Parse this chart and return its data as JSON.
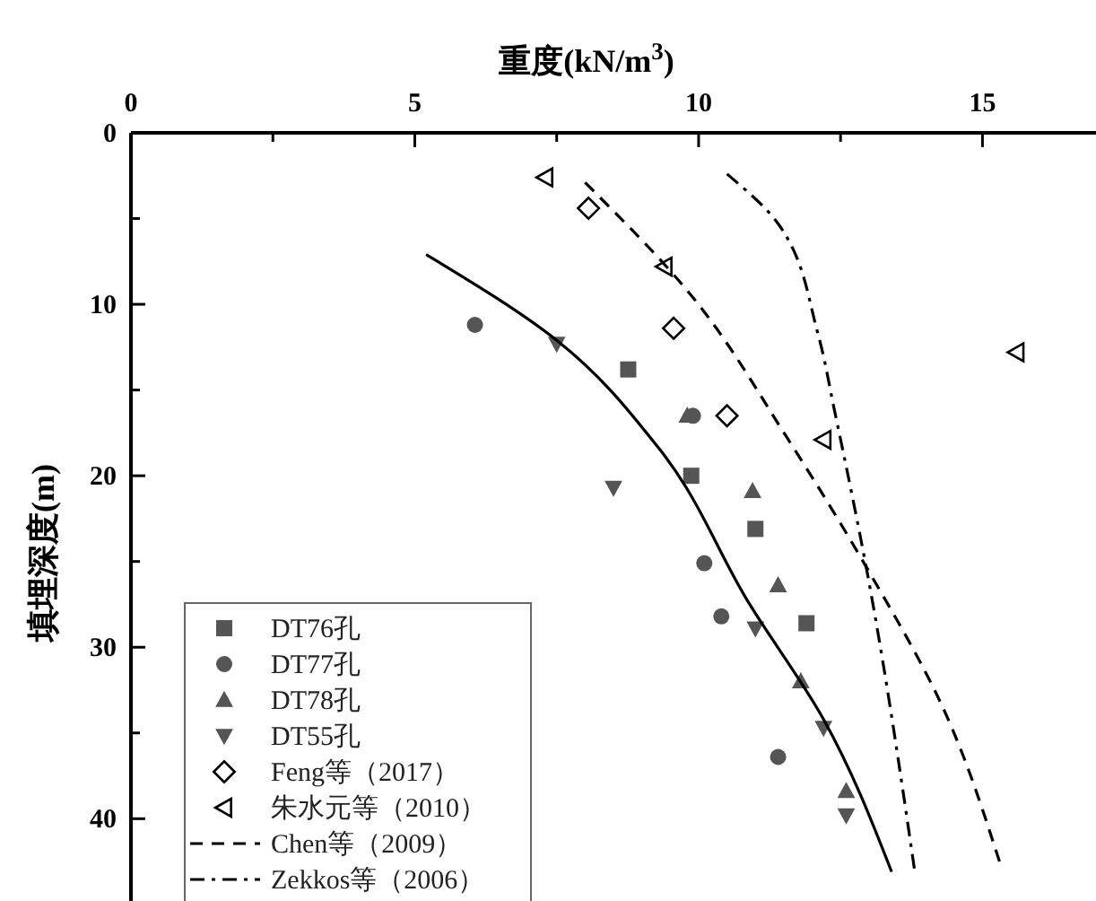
{
  "chart_data": {
    "type": "scatter",
    "xlabel": "重度(kN/m$^{3}$)",
    "ylabel": "填埋深度(m)",
    "xlim": [
      0,
      17
    ],
    "xticks": [
      0,
      {
        "value": 2.5,
        "label": null
      },
      5,
      {
        "value": 7.5,
        "label": null
      },
      10,
      {
        "value": 12.5,
        "label": null
      },
      15
    ],
    "ylim": [
      44.8,
      0
    ],
    "yticks": [
      0,
      {
        "value": 5,
        "label": null
      },
      10,
      {
        "value": 15,
        "label": null
      },
      20,
      {
        "value": 25,
        "label": null
      },
      30,
      {
        "value": 35,
        "label": null
      },
      40
    ],
    "grid": false,
    "legend": "bottom left",
    "series": [
      {
        "name": "DT76孔",
        "marker": "square",
        "color": "#555555",
        "x": [
          8.76,
          9.87,
          11.0,
          11.9
        ],
        "values": [
          13.8,
          20.0,
          23.1,
          28.6
        ]
      },
      {
        "name": "DT77孔",
        "marker": "circle",
        "color": "#555555",
        "x": [
          6.06,
          9.9,
          10.1,
          10.4,
          11.4
        ],
        "values": [
          11.2,
          16.5,
          25.1,
          28.2,
          36.4
        ]
      },
      {
        "name": "DT78孔",
        "marker": "triangle",
        "color": "#555555",
        "x": [
          9.8,
          10.95,
          11.4,
          11.8,
          12.6
        ],
        "values": [
          16.5,
          20.9,
          26.4,
          32.0,
          38.4
        ]
      },
      {
        "name": "DT55孔",
        "marker": "triangle-down",
        "color": "#555555",
        "x": [
          7.5,
          8.5,
          11.0,
          12.2,
          12.6
        ],
        "values": [
          12.3,
          20.7,
          28.9,
          34.7,
          39.8
        ]
      },
      {
        "name": "Feng等（2017）",
        "marker": "diamond",
        "color": "#000000",
        "x": [
          8.06,
          9.56,
          10.5
        ],
        "values": [
          4.4,
          11.4,
          16.5
        ]
      },
      {
        "name": "朱水元等（2010）",
        "marker": "triangle-left",
        "color": "#000000",
        "x": [
          7.3,
          9.4,
          15.6,
          12.2
        ],
        "values": [
          2.6,
          7.8,
          12.8,
          17.9
        ]
      },
      {
        "name": "Chen等（2009）",
        "type": "line",
        "line_style": "dashed",
        "color": "#000000",
        "x": [
          8.0,
          9.8,
          11.6,
          12.95,
          14.3,
          15.3
        ],
        "values": [
          2.9,
          9.2,
          18.0,
          25.3,
          33.5,
          42.5
        ]
      },
      {
        "name": "Zekkos等（2006）",
        "type": "line",
        "line_style": "dashdot",
        "color": "#000000",
        "x": [
          10.5,
          11.4,
          12.1,
          12.4,
          12.95,
          13.8
        ],
        "values": [
          2.4,
          5.3,
          11.7,
          16.3,
          25.3,
          42.9
        ]
      },
      {
        "type": "line",
        "line_style": "solid",
        "color": "#000000",
        "x": [
          5.2,
          7.5,
          9.3,
          10.9,
          12.2,
          13.4
        ],
        "values": [
          7.1,
          12.1,
          18.4,
          27.5,
          34.2,
          43.1
        ]
      }
    ]
  }
}
